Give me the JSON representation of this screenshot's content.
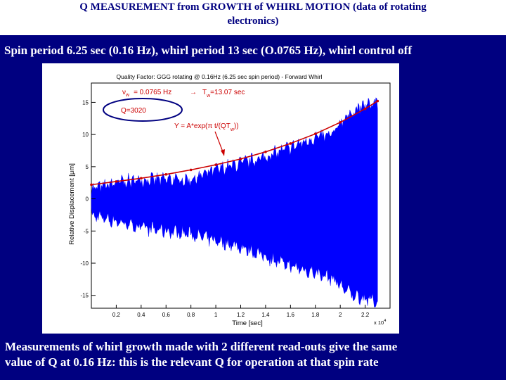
{
  "header": {
    "title_line1": "Q   MEASUREMENT  from  GROWTH of  WHIRL  MOTION (data of rotating",
    "title_line2": "electronics)"
  },
  "subtitle": "Spin period 6.25 sec (0.16 Hz), whirl period 13 sec (O.0765 Hz), whirl control off",
  "caption": {
    "line1": "Measurements of whirl growth made with 2 different read-outs give the same",
    "line2": "value of Q at 0.16 Hz: this is the relevant Q for operation at that spin rate"
  },
  "colors": {
    "header_text": "#000080",
    "slide_background": "#000080",
    "signal": "#0000ff",
    "fit_curve": "#cc0000",
    "annotation": "#cc0000"
  },
  "chart_data": {
    "type": "line",
    "title": "Quality Factor: GGG rotating @ 0.16Hz  (6.25 sec spin period) - Forward Whirl",
    "xlabel": "Time [sec]",
    "x_multiplier": "x 10",
    "x_multiplier_exp": "4",
    "ylabel": "Relative Displacement [μm]",
    "xlim": [
      0,
      2.4
    ],
    "ylim": [
      -17,
      18
    ],
    "x_ticks": [
      "0.2",
      "0.4",
      "0.6",
      "0.8",
      "1",
      "1.2",
      "1.4",
      "1.6",
      "1.8",
      "2",
      "2.2"
    ],
    "y_ticks": [
      "15",
      "10",
      "5",
      "0",
      "-5",
      "-10",
      "-15"
    ],
    "grid": false,
    "series": [
      {
        "kind": "oscillation-envelope",
        "x": [
          0.0,
          0.2,
          0.4,
          0.6,
          0.8,
          1.0,
          1.2,
          1.4,
          1.6,
          1.8,
          1.95,
          2.0,
          2.1,
          2.2,
          2.3
        ],
        "upper": [
          1.5,
          2.5,
          3.0,
          3.0,
          3.0,
          4.5,
          5.5,
          6.5,
          8.0,
          9.5,
          10.0,
          12.0,
          13.5,
          14.5,
          15.0
        ],
        "lower": [
          -2.5,
          -3.5,
          -4.5,
          -5.0,
          -5.5,
          -6.5,
          -7.5,
          -9.0,
          -10.5,
          -11.5,
          -12.5,
          -13.5,
          -15.0,
          -15.5,
          -16.0
        ]
      },
      {
        "kind": "exponential-fit",
        "x": [
          0.0,
          0.2,
          0.4,
          0.6,
          0.8,
          1.0,
          1.2,
          1.4,
          1.6,
          1.8,
          2.0,
          2.2,
          2.3
        ],
        "y": [
          2.2,
          2.7,
          3.2,
          3.8,
          4.5,
          5.3,
          6.2,
          7.3,
          8.6,
          10.1,
          11.9,
          14.0,
          15.2
        ]
      }
    ],
    "annotations": {
      "nu_line": "ν",
      "nu_sub": "w",
      "nu_value": "= 0.0765 Hz",
      "arrow": "→",
      "T_label": "T",
      "T_sub": "w",
      "T_value": "=13.07 sec",
      "Q_label": "Q=3020",
      "formula_main": "Y = A*exp(π t/(QT",
      "formula_sub": "w",
      "formula_end": "))"
    }
  }
}
